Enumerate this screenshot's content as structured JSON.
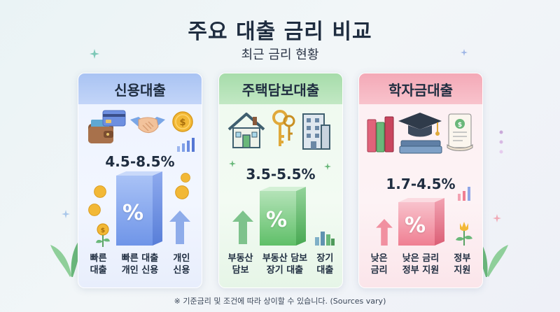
{
  "header": {
    "title": "주요 대출 금리 비교",
    "subtitle": "최근 금리 현황"
  },
  "cards": [
    {
      "title": "신용대출",
      "rate": "4.5-8.5%",
      "bar_symbol": "%",
      "labels": [
        "빠른\n대출",
        "빠른 대출\n개인 신용",
        "개인\n신용"
      ],
      "accent": "#6f95e8"
    },
    {
      "title": "주택담보대출",
      "rate": "3.5-5.5%",
      "bar_symbol": "%",
      "labels": [
        "부동산\n담보",
        "부동산 담보\n장기 대출",
        "장기\n대출"
      ],
      "accent": "#5fbf68"
    },
    {
      "title": "학자금대출",
      "rate": "1.7-4.5%",
      "bar_symbol": "%",
      "labels": [
        "낮은\n금리",
        "낮은 금리\n정부 지원",
        "정부\n지원"
      ],
      "accent": "#ef7f92"
    }
  ],
  "footnote": "※ 기준금리 및 조건에 따라 상이할 수 있습니다. (Sources vary)",
  "icons": [
    "wallet-icon",
    "credit-card-icon",
    "handshake-icon",
    "coin-icon",
    "house-icon",
    "key-icon",
    "building-icon",
    "books-icon",
    "graduation-cap-icon",
    "diploma-icon",
    "arrow-up-icon",
    "plant-icon"
  ]
}
